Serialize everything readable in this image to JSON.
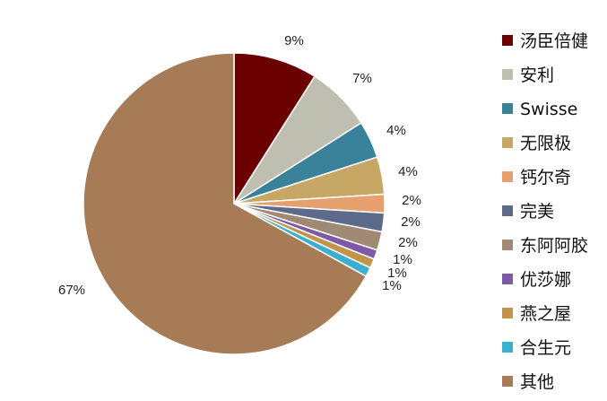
{
  "chart_data": {
    "type": "pie",
    "title": "",
    "legend_position": "right",
    "slices": [
      {
        "name": "汤臣倍健",
        "value": 9,
        "label": "9%",
        "color": "#6b0000"
      },
      {
        "name": "安利",
        "value": 7,
        "label": "7%",
        "color": "#bfbfb1"
      },
      {
        "name": "Swisse",
        "value": 4,
        "label": "4%",
        "color": "#3a8299"
      },
      {
        "name": "无限极",
        "value": 4,
        "label": "4%",
        "color": "#c6a764"
      },
      {
        "name": "钙尔奇",
        "value": 2,
        "label": "2%",
        "color": "#e6a06d"
      },
      {
        "name": "完美",
        "value": 2,
        "label": "2%",
        "color": "#5e6a8a"
      },
      {
        "name": "东阿阿胶",
        "value": 2,
        "label": "2%",
        "color": "#a08a74"
      },
      {
        "name": "优莎娜",
        "value": 1,
        "label": "1%",
        "color": "#7e5aa6"
      },
      {
        "name": "燕之屋",
        "value": 1,
        "label": "1%",
        "color": "#c2944a"
      },
      {
        "name": "合生元",
        "value": 1,
        "label": "1%",
        "color": "#3aafcf"
      },
      {
        "name": "其他",
        "value": 67,
        "label": "67%",
        "color": "#a67b55"
      }
    ]
  }
}
